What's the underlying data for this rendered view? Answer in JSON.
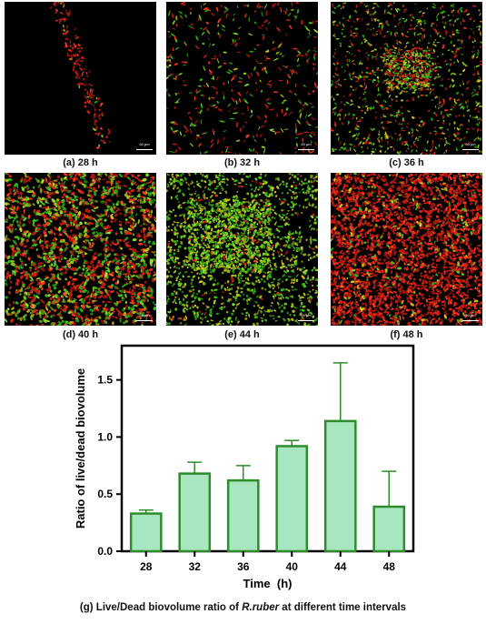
{
  "panels": [
    {
      "caption": "(a) 28 h",
      "scale_label": "50 µm"
    },
    {
      "caption": "(b) 32 h",
      "scale_label": "50 µm"
    },
    {
      "caption": "(c) 36 h",
      "scale_label": "50 µm"
    },
    {
      "caption": "(d) 40 h",
      "scale_label": "50 µm"
    },
    {
      "caption": "(e) 44 h",
      "scale_label": "50 µm"
    },
    {
      "caption": "(f) 48 h",
      "scale_label": "50 µm"
    }
  ],
  "caption": {
    "prefix": "(g) Live/Dead biovolume ratio of ",
    "species": "R.ruber",
    "suffix": " at different time intervals"
  },
  "chart_data": {
    "type": "bar",
    "categories": [
      "28",
      "32",
      "36",
      "40",
      "44",
      "48"
    ],
    "values": [
      0.33,
      0.68,
      0.62,
      0.92,
      1.14,
      0.39
    ],
    "error_upper": [
      0.03,
      0.1,
      0.13,
      0.05,
      0.51,
      0.31
    ],
    "xlabel": "Time  (h)",
    "ylabel": "Ratio of live/dead biovolume",
    "ylim": [
      0,
      1.8
    ],
    "yticks": [
      "0.0",
      "0.5",
      "1.0",
      "1.5"
    ],
    "colors": {
      "bar_fill": "#a8e6bf",
      "bar_edge": "#2e8b2e",
      "axis": "#000000"
    }
  }
}
